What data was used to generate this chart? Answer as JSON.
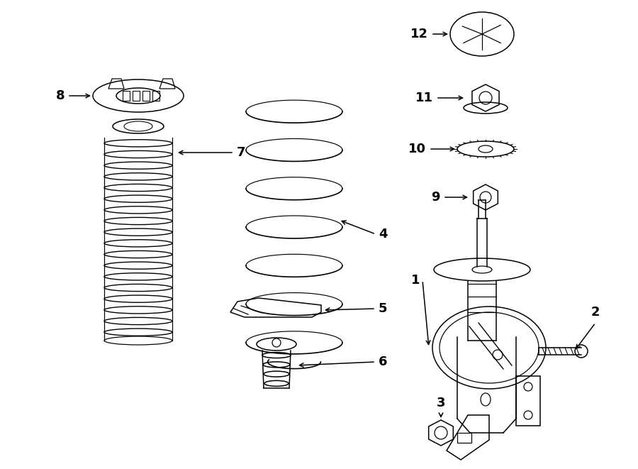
{
  "bg_color": "#ffffff",
  "line_color": "#000000",
  "fig_width": 9.0,
  "fig_height": 6.61,
  "dpi": 100,
  "lw": 1.1
}
